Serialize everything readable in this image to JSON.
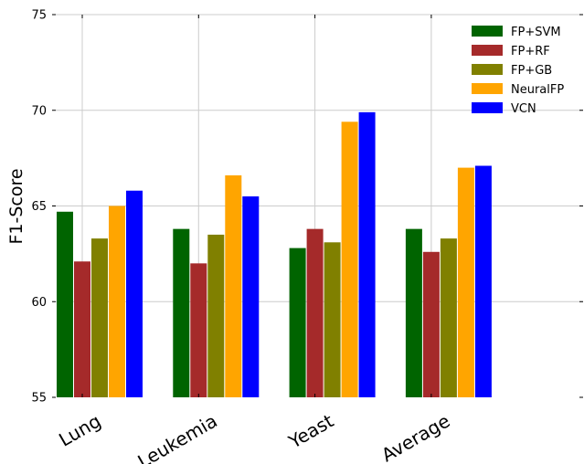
{
  "chart_data": {
    "type": "bar",
    "categories": [
      "Lung",
      "Leukemia",
      "Yeast",
      "Average"
    ],
    "series": [
      {
        "name": "FP+SVM",
        "color": "#006400",
        "values": [
          64.7,
          63.8,
          62.8,
          63.8
        ]
      },
      {
        "name": "FP+RF",
        "color": "#a52a2a",
        "values": [
          62.1,
          62.0,
          63.8,
          62.6
        ]
      },
      {
        "name": "FP+GB",
        "color": "#808000",
        "values": [
          63.3,
          63.5,
          63.1,
          63.3
        ]
      },
      {
        "name": "NeuralFP",
        "color": "#ffa500",
        "values": [
          65.0,
          66.6,
          69.4,
          67.0
        ]
      },
      {
        "name": "VCN",
        "color": "#0000ff",
        "values": [
          65.8,
          65.5,
          69.9,
          67.1
        ]
      }
    ],
    "yticks": [
      55,
      60,
      65,
      70,
      75
    ],
    "ylim": [
      55,
      75
    ],
    "ylabel": "F1-Score",
    "xlabel": "",
    "title": "",
    "grid": true,
    "legend_position": "top-right"
  }
}
